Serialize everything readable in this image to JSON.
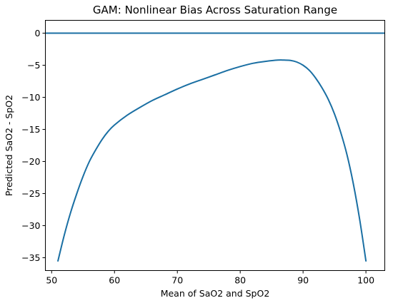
{
  "chart_data": {
    "type": "line",
    "title": "GAM: Nonlinear Bias Across Saturation Range",
    "xlabel": "Mean of SaO2 and SpO2",
    "ylabel": "Predicted SaO2 - SpO2",
    "xlim": [
      49,
      103
    ],
    "ylim": [
      -37,
      2
    ],
    "xticks": [
      50,
      60,
      70,
      80,
      90,
      100
    ],
    "yticks": [
      0,
      -5,
      -10,
      -15,
      -20,
      -25,
      -30,
      -35
    ],
    "xtick_labels": [
      "50",
      "60",
      "70",
      "80",
      "90",
      "100"
    ],
    "ytick_labels": [
      "0",
      "−5",
      "−10",
      "−15",
      "−20",
      "−25",
      "−30",
      "−35"
    ],
    "grid": false,
    "reference_line": {
      "y": 0
    },
    "series": [
      {
        "x": [
          51,
          52,
          53,
          54,
          55,
          56,
          57,
          58,
          59,
          60,
          62,
          64,
          66,
          68,
          70,
          72,
          74,
          76,
          78,
          80,
          82,
          84,
          86,
          87,
          88,
          89,
          90,
          91,
          92,
          93,
          94,
          95,
          96,
          97,
          98,
          99,
          100
        ],
        "y": [
          -35.5,
          -31.5,
          -28.0,
          -25.0,
          -22.3,
          -20.0,
          -18.2,
          -16.6,
          -15.3,
          -14.3,
          -12.8,
          -11.6,
          -10.5,
          -9.6,
          -8.7,
          -7.9,
          -7.2,
          -6.5,
          -5.8,
          -5.2,
          -4.7,
          -4.4,
          -4.2,
          -4.2,
          -4.25,
          -4.5,
          -5.0,
          -5.8,
          -7.0,
          -8.5,
          -10.3,
          -12.6,
          -15.5,
          -19.0,
          -23.5,
          -29.0,
          -35.5
        ]
      }
    ]
  }
}
